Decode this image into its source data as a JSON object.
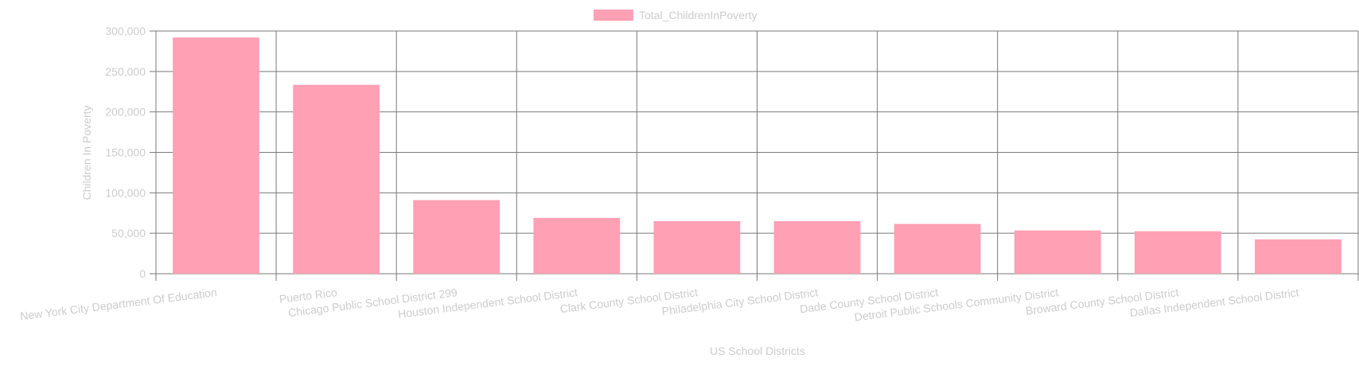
{
  "chart_data": {
    "type": "bar",
    "title": "",
    "xlabel": "US School Districts",
    "ylabel": "Children In Poverty",
    "ylim": [
      0,
      300000
    ],
    "yticks": [
      0,
      50000,
      100000,
      150000,
      200000,
      250000,
      300000
    ],
    "grid": true,
    "legend_position": "top",
    "categories": [
      "New York City Department Of Education",
      "Puerto Rico",
      "Chicago Public School District 299",
      "Houston Independent School District",
      "Clark County School District",
      "Philadelphia City School District",
      "Dade County School District",
      "Detroit Public Schools Community District",
      "Broward County School District",
      "Dallas Independent School District"
    ],
    "series": [
      {
        "name": "Total_ChildrenInPoverty",
        "color": "#ffa0b4",
        "values": [
          292000,
          233500,
          91000,
          69000,
          65000,
          65000,
          61500,
          53500,
          52500,
          42500
        ]
      }
    ],
    "colors": {
      "bar": "#ffa0b4",
      "grid": "#7a7a7a",
      "text": "#cccccc"
    }
  }
}
